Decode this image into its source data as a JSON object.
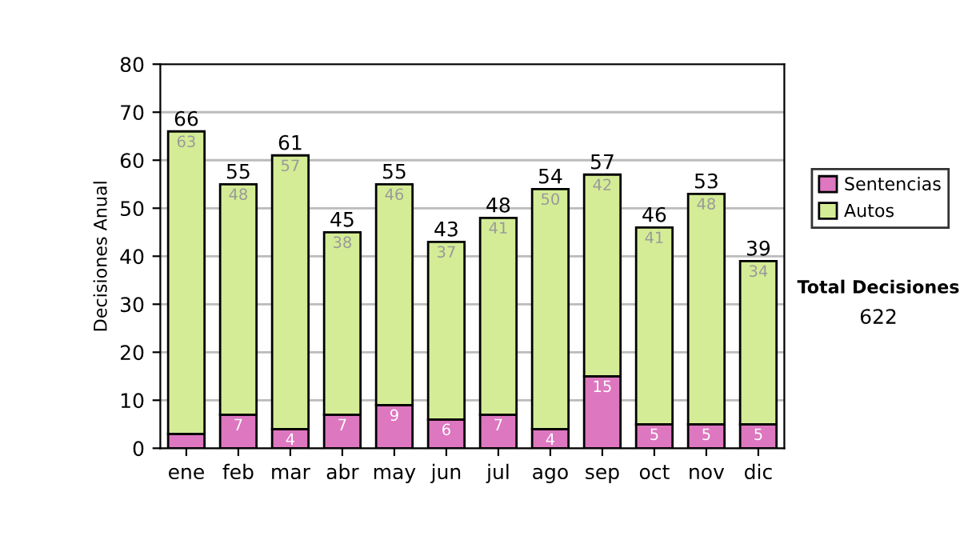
{
  "chart_data": {
    "type": "bar",
    "stacked": true,
    "ylabel": "Decisiones Anual",
    "categories": [
      "ene",
      "feb",
      "mar",
      "abr",
      "may",
      "jun",
      "jul",
      "ago",
      "sep",
      "oct",
      "nov",
      "dic"
    ],
    "series": [
      {
        "name": "Sentencias",
        "color": "#dd77c0",
        "values": [
          3,
          7,
          4,
          7,
          9,
          6,
          7,
          4,
          15,
          5,
          5,
          5
        ],
        "value_labels": [
          null,
          "7",
          "4",
          "7",
          "9",
          "6",
          "7",
          "4",
          "15",
          "5",
          "5",
          "5"
        ]
      },
      {
        "name": "Autos",
        "color": "#d4ec96",
        "values": [
          63,
          48,
          57,
          38,
          46,
          37,
          41,
          50,
          42,
          41,
          48,
          34
        ],
        "value_labels": [
          "63",
          "48",
          "57",
          "38",
          "46",
          "37",
          "41",
          "50",
          "42",
          "41",
          "48",
          "34"
        ]
      }
    ],
    "totals": [
      "66",
      "55",
      "61",
      "45",
      "55",
      "43",
      "48",
      "54",
      "57",
      "46",
      "53",
      "39"
    ],
    "ylim": [
      0,
      80
    ],
    "yticks": [
      0,
      10,
      20,
      30,
      40,
      50,
      60,
      70,
      80
    ],
    "grid": "y",
    "legend": "right",
    "annotations": [
      "Total Decisiones",
      "622"
    ]
  }
}
